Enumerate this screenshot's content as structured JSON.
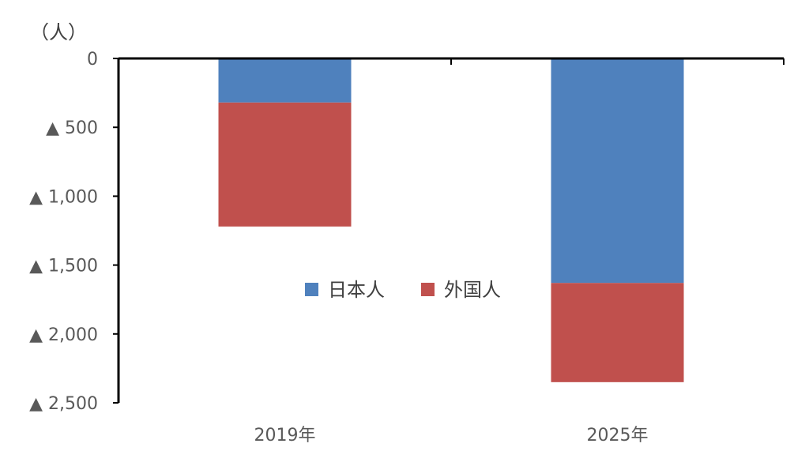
{
  "chart_data": {
    "type": "bar",
    "stacked": true,
    "orientation": "negative-down",
    "unit_label": "（人）",
    "categories": [
      "2019年",
      "2025年"
    ],
    "series": [
      {
        "name": "日本人",
        "values": [
          320,
          1630
        ],
        "color": "#4F81BD"
      },
      {
        "name": "外国人",
        "values": [
          900,
          720
        ],
        "color": "#C0504D"
      }
    ],
    "ylim": [
      0,
      2500
    ],
    "y_ticks": [
      {
        "value": 0,
        "label": "0"
      },
      {
        "value": 500,
        "label": "▲ 500"
      },
      {
        "value": 1000,
        "label": "▲ 1,000"
      },
      {
        "value": 1500,
        "label": "▲ 1,500"
      },
      {
        "value": 2000,
        "label": "▲ 2,000"
      },
      {
        "value": 2500,
        "label": "▲ 2,500"
      }
    ],
    "grid": false,
    "legend_position": "center"
  }
}
